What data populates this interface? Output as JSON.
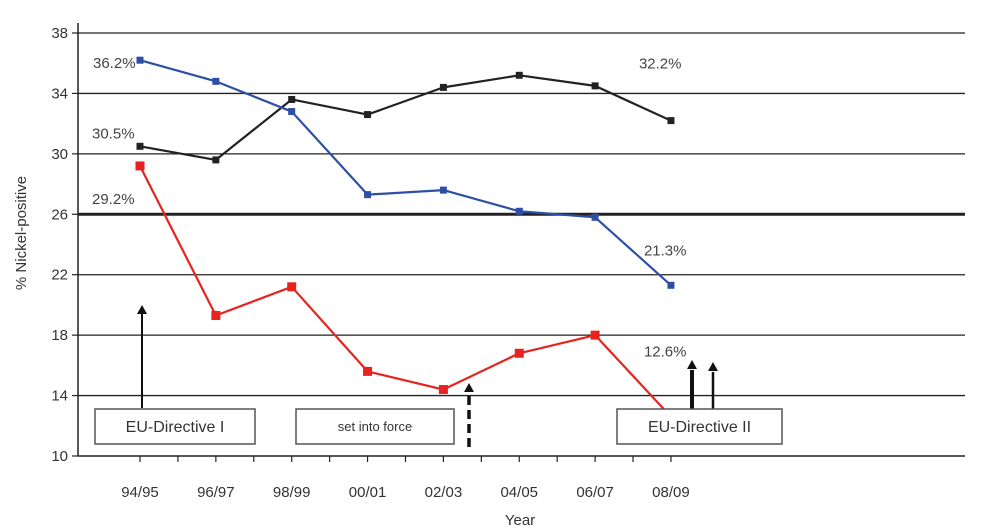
{
  "chart_data": {
    "type": "line",
    "xlabel": "Year",
    "ylabel": "% Nickel-positive",
    "categories": [
      "94/95",
      "96/97",
      "98/99",
      "00/01",
      "02/03",
      "04/05",
      "06/07",
      "08/09"
    ],
    "ylim": [
      10,
      38
    ],
    "yticks": [
      10,
      14,
      18,
      22,
      26,
      30,
      34,
      38
    ],
    "series": [
      {
        "color": "#222222",
        "values": [
          30.5,
          29.6,
          33.6,
          32.6,
          34.4,
          35.2,
          34.5,
          32.2
        ]
      },
      {
        "color": "#2d4fa5",
        "values": [
          36.2,
          34.8,
          32.8,
          27.3,
          27.6,
          26.2,
          25.8,
          21.3
        ]
      },
      {
        "color": "#e8221e",
        "values": [
          29.2,
          19.3,
          21.2,
          15.6,
          14.4,
          16.8,
          18.0,
          12.6
        ]
      }
    ],
    "annotations": [
      {
        "text": "36.2%",
        "series": 1,
        "index": 0
      },
      {
        "text": "30.5%",
        "series": 0,
        "index": 0
      },
      {
        "text": "29.2%",
        "series": 2,
        "index": 0
      },
      {
        "text": "32.2%",
        "series": 0,
        "index": 7
      },
      {
        "text": "21.3%",
        "series": 1,
        "index": 7
      },
      {
        "text": "12.6%",
        "series": 2,
        "index": 7
      }
    ],
    "boxes": [
      {
        "text": "EU-Directive I"
      },
      {
        "text": "set into force"
      },
      {
        "text": "EU-Directive II"
      }
    ],
    "grid": true,
    "emphasized_gridline": 26
  }
}
